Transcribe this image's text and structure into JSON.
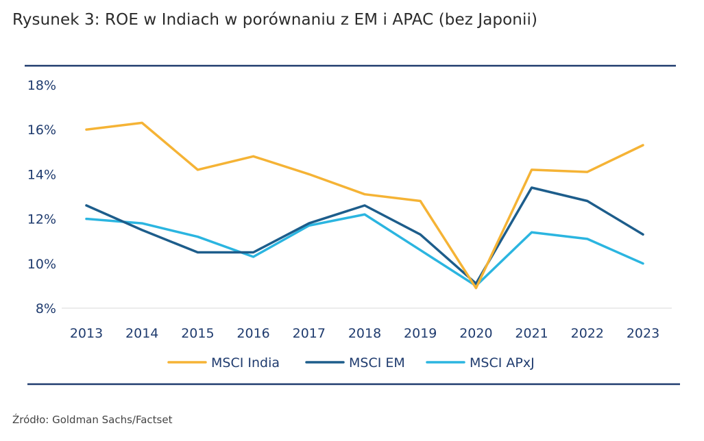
{
  "title": "Rysunek 3: ROE w Indiach w porównaniu z EM i APAC (bez Japonii)",
  "source": "Źródło: Goldman Sachs/Factset",
  "colors": {
    "rule": "#1f3b6e",
    "axis_text": "#1f3b6e",
    "grid": "#d9d9d9"
  },
  "chart_data": {
    "type": "line",
    "title": "",
    "xlabel": "",
    "ylabel": "",
    "categories": [
      "2013",
      "2014",
      "2015",
      "2016",
      "2017",
      "2018",
      "2019",
      "2020",
      "2021",
      "2022",
      "2023"
    ],
    "ylim": [
      8,
      18
    ],
    "yticks": [
      8,
      10,
      12,
      14,
      16,
      18
    ],
    "ytick_labels": [
      "8%",
      "10%",
      "12%",
      "14%",
      "16%",
      "18%"
    ],
    "grid": "baseline only",
    "legend_position": "bottom",
    "series": [
      {
        "name": "MSCI India",
        "color": "#f5b335",
        "values": [
          16.0,
          16.3,
          14.2,
          14.8,
          14.0,
          13.1,
          12.8,
          8.9,
          14.2,
          14.1,
          15.3
        ]
      },
      {
        "name": "MSCI EM",
        "color": "#1d5d8b",
        "values": [
          12.6,
          11.5,
          10.5,
          10.5,
          11.8,
          12.6,
          11.3,
          9.1,
          13.4,
          12.8,
          11.3
        ]
      },
      {
        "name": "MSCI APxJ",
        "color": "#2bb5e0",
        "values": [
          12.0,
          11.8,
          11.2,
          10.3,
          11.7,
          12.2,
          10.6,
          9.0,
          11.4,
          11.1,
          10.0
        ]
      }
    ]
  }
}
